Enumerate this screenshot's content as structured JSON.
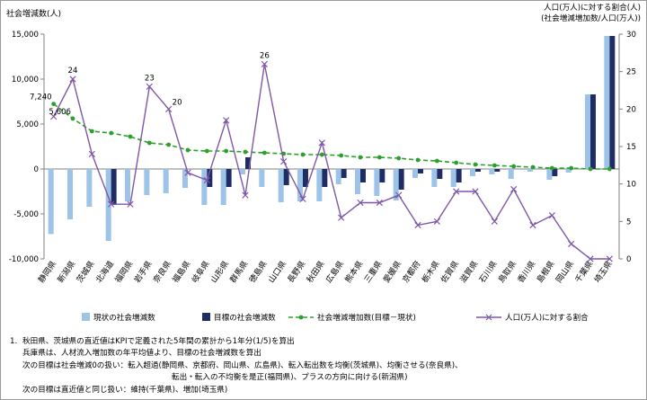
{
  "chart_data": {
    "type": "bar",
    "ylabel_left": "社会増減数(人)",
    "ylabel_right_line1": "人口(万人)に対する割合(人)",
    "ylabel_right_line2": "(社会増減増加数/人口(万人))",
    "ylim_left": [
      -10000,
      15000
    ],
    "ylim_right": [
      0,
      30
    ],
    "yticks_left": [
      "15,000",
      "10,000",
      "5,000",
      "0",
      "-5,000",
      "-10,000"
    ],
    "yticks_right": [
      "30",
      "25",
      "20",
      "15",
      "10",
      "5",
      "0"
    ],
    "grid": false,
    "legend_position": "bottom",
    "categories": [
      "静岡県",
      "新潟県",
      "茨城県",
      "北海道",
      "福岡県",
      "岩手県",
      "奈良県",
      "福島県",
      "岐阜県",
      "山形県",
      "群馬県",
      "徳島県",
      "山口県",
      "長野県",
      "秋田県",
      "広島県",
      "熊本県",
      "三重県",
      "愛媛県",
      "京都府",
      "栃木県",
      "佐賀県",
      "滋賀県",
      "石川県",
      "鳥取県",
      "香川県",
      "島根県",
      "岡山県",
      "千葉県",
      "埼玉県"
    ],
    "series": [
      {
        "name": "現状の社会増減数",
        "kind": "bar",
        "axis": "left",
        "color": "#9dc3e6",
        "values": [
          -7240,
          -5606,
          -4200,
          -8000,
          -3600,
          -2900,
          -2700,
          -2100,
          -4000,
          -4000,
          -600,
          -2000,
          -3700,
          -3600,
          -3600,
          -1700,
          -2800,
          -3000,
          -3500,
          -1000,
          -2000,
          -2000,
          -800,
          -600,
          -1100,
          -300,
          -1200,
          -400,
          8300,
          14800
        ]
      },
      {
        "name": "目標の社会増減数",
        "kind": "bar",
        "axis": "left",
        "color": "#1f2d64",
        "values": [
          0,
          0,
          0,
          -4000,
          0,
          0,
          0,
          0,
          -2000,
          -2000,
          1300,
          0,
          -1800,
          -2000,
          -2000,
          -1000,
          -1500,
          -1500,
          -2300,
          -500,
          -1100,
          -1500,
          -300,
          -300,
          0,
          0,
          -800,
          0,
          8300,
          14800
        ]
      },
      {
        "name": "社会増減増加数(目標－現状)",
        "kind": "line",
        "axis": "left",
        "color": "#2ca02c",
        "dashed": true,
        "values": [
          7240,
          5606,
          4200,
          4000,
          3600,
          2900,
          2700,
          2100,
          2000,
          2000,
          1900,
          1800,
          1700,
          1600,
          1600,
          1500,
          1300,
          1300,
          1200,
          1000,
          900,
          700,
          500,
          400,
          300,
          200,
          100,
          100,
          0,
          0
        ]
      },
      {
        "name": "人口(万人)に対する割合",
        "kind": "line",
        "axis": "right",
        "color": "#7e57a8",
        "values": [
          19,
          24,
          14,
          7.3,
          7.3,
          23,
          20,
          11.5,
          10.5,
          18.5,
          8.5,
          26,
          13,
          8,
          15.5,
          5.5,
          7.5,
          7.5,
          8.5,
          4.5,
          5,
          9,
          9,
          5,
          9.3,
          4.5,
          5.8,
          2,
          0,
          0
        ]
      }
    ],
    "annotations": [
      {
        "text": "7,240",
        "series": 2,
        "index": 0
      },
      {
        "text": "5,606",
        "series": 2,
        "index": 1
      },
      {
        "text": "24",
        "series": 3,
        "index": 1
      },
      {
        "text": "23",
        "series": 3,
        "index": 5
      },
      {
        "text": "20",
        "series": 3,
        "index": 6
      },
      {
        "text": "26",
        "series": 3,
        "index": 11
      }
    ]
  },
  "notes": {
    "number": "1.",
    "line1": "秋田県、茨城県の直近値はKPIで定義された5年間の累計から1年分(1/5)を算出",
    "line2": "兵庫県は、人材流入増加数の年平均値より、目標の社会増減数を算出",
    "line3": "次の目標は社会増減0の扱い：転入超過(静岡県、京都府、岡山県、広島県)、転入転出数を均衡(茨城県)、均衡させる(奈良県)、",
    "line4": "転出・転入の不均衡を是正(福岡県)、プラスの方向に向ける(新潟県)",
    "line5": "次の目標は直近値と同じ扱い：維持(千葉県)、増加(埼玉県)"
  }
}
